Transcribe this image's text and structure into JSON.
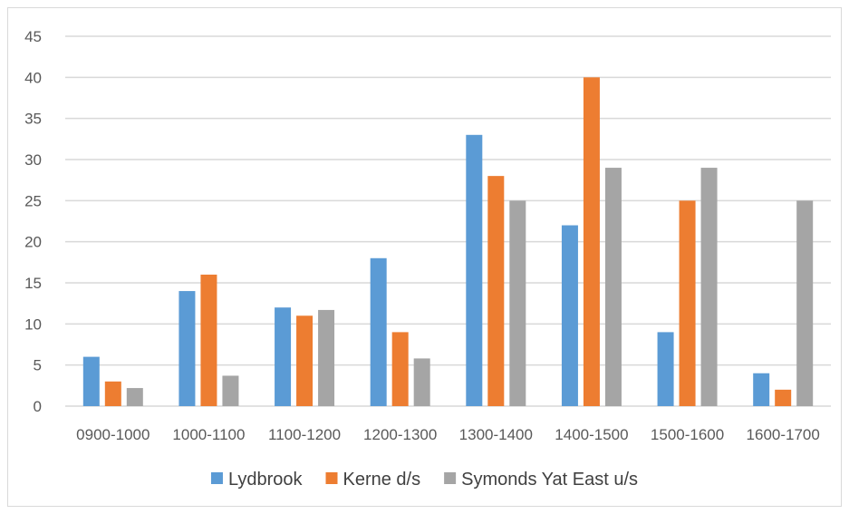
{
  "chart_data": {
    "type": "bar",
    "title": "",
    "xlabel": "",
    "ylabel": "",
    "categories": [
      "0900-1000",
      "1000-1100",
      "1100-1200",
      "1200-1300",
      "1300-1400",
      "1400-1500",
      "1500-1600",
      "1600-1700"
    ],
    "series": [
      {
        "name": "Lydbrook",
        "color": "#5b9bd5",
        "values": [
          6,
          14,
          12,
          18,
          33,
          22,
          9,
          4
        ]
      },
      {
        "name": "Kerne d/s",
        "color": "#ed7d31",
        "values": [
          3,
          16,
          11,
          9,
          28,
          40,
          25,
          2
        ]
      },
      {
        "name": "Symonds Yat East u/s",
        "color": "#a5a5a5",
        "values": [
          2.2,
          3.7,
          11.7,
          5.8,
          25,
          29,
          29,
          25
        ]
      }
    ],
    "ylim": [
      0,
      45
    ],
    "yticks": [
      0,
      5,
      10,
      15,
      20,
      25,
      30,
      35,
      40,
      45
    ],
    "grid": true,
    "legend_position": "bottom",
    "gridline_color": "#d9d9d9"
  }
}
